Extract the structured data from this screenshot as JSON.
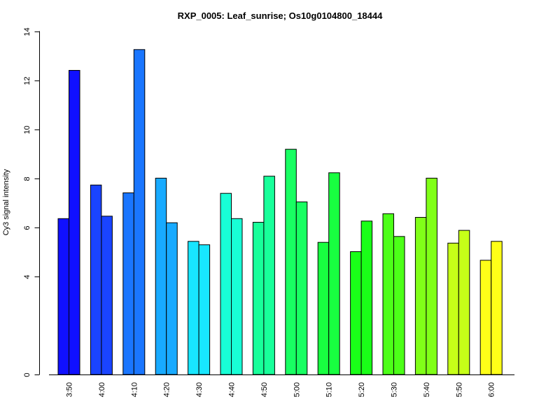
{
  "chart_data": {
    "type": "bar",
    "title": "RXP_0005: Leaf_sunrise; Os10g0104800_18444",
    "xlabel": "",
    "ylabel": "Cy3 signal intensity",
    "yticks": [
      "0",
      "4",
      "6",
      "8",
      "10",
      "12",
      "14"
    ],
    "categories": [
      "3:50",
      "4:00",
      "4:10",
      "4:20",
      "4:30",
      "4:40",
      "4:50",
      "5:00",
      "5:10",
      "5:20",
      "5:30",
      "5:40",
      "5:50",
      "6:00"
    ],
    "colors": [
      "#1010ff",
      "#1a44ff",
      "#1a76ff",
      "#18aaff",
      "#18e6ff",
      "#18ffd6",
      "#18ff9a",
      "#18ff62",
      "#18ff40",
      "#1aff18",
      "#4cff18",
      "#80ff18",
      "#c6ff18",
      "#ffff18"
    ],
    "series": [
      {
        "values": [
          6.35,
          7.72,
          7.4,
          8.0,
          5.42,
          7.38,
          6.2,
          9.18,
          5.38,
          5.0,
          6.55,
          6.4,
          5.35,
          4.65
        ]
      },
      {
        "values": [
          12.4,
          6.45,
          13.25,
          6.18,
          5.28,
          6.35,
          8.08,
          7.03,
          8.22,
          6.25,
          5.62,
          8.0,
          5.87,
          5.42
        ]
      }
    ],
    "ylim": [
      0,
      14
    ],
    "grid": false,
    "legend": "none"
  }
}
